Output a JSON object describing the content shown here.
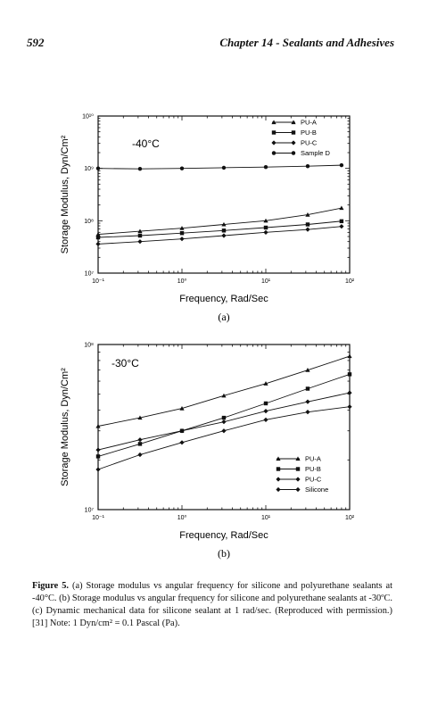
{
  "header": {
    "page_number": "592",
    "chapter_title": "Chapter 14 - Sealants and Adhesives"
  },
  "chart_data": [
    {
      "type": "line",
      "panel_label": "(a)",
      "annotation": "-40°C",
      "xlabel": "Frequency, Rad/Sec",
      "ylabel": "Storage Modulus, Dyn/Cm²",
      "x_scale": "log",
      "y_scale": "log",
      "xlim": [
        0.1,
        100
      ],
      "ylim": [
        10000000,
        10000000000
      ],
      "x_ticks": [
        {
          "value": 0.1,
          "label": "10⁻¹"
        },
        {
          "value": 1,
          "label": "10⁰"
        },
        {
          "value": 10,
          "label": "10¹"
        },
        {
          "value": 100,
          "label": "10²"
        }
      ],
      "y_ticks": [
        {
          "value": 10000000,
          "label": "10⁷"
        },
        {
          "value": 100000000,
          "label": "10⁸"
        },
        {
          "value": 1000000000,
          "label": "10⁹"
        },
        {
          "value": 10000000000,
          "label": "10¹⁰"
        }
      ],
      "legend_position": "top-right",
      "series": [
        {
          "name": "PU-A",
          "marker": "triangle",
          "x": [
            0.1,
            0.316,
            1,
            3.16,
            10,
            31.6,
            80
          ],
          "y": [
            55000000,
            63000000,
            72000000,
            85000000,
            100000000,
            130000000,
            175000000
          ]
        },
        {
          "name": "PU-B",
          "marker": "square",
          "x": [
            0.1,
            0.316,
            1,
            3.16,
            10,
            31.6,
            80
          ],
          "y": [
            48000000,
            52000000,
            58000000,
            65000000,
            74000000,
            85000000,
            98000000
          ]
        },
        {
          "name": "PU-C",
          "marker": "diamond",
          "x": [
            0.1,
            0.316,
            1,
            3.16,
            10,
            31.6,
            80
          ],
          "y": [
            36000000,
            40000000,
            45000000,
            52000000,
            60000000,
            68000000,
            78000000
          ]
        },
        {
          "name": "Sample D",
          "marker": "circle",
          "x": [
            0.1,
            0.316,
            1,
            3.16,
            10,
            31.6,
            80
          ],
          "y": [
            1000000000,
            980000000,
            1000000000,
            1030000000,
            1060000000,
            1100000000,
            1150000000
          ]
        }
      ]
    },
    {
      "type": "line",
      "panel_label": "(b)",
      "annotation": "-30°C",
      "xlabel": "Frequency, Rad/Sec",
      "ylabel": "Storage Modulus, Dyn/Cm²",
      "x_scale": "log",
      "y_scale": "log",
      "xlim": [
        0.1,
        100
      ],
      "ylim": [
        10000000,
        100000000
      ],
      "x_ticks": [
        {
          "value": 0.1,
          "label": "10⁻¹"
        },
        {
          "value": 1,
          "label": "10⁰"
        },
        {
          "value": 10,
          "label": "10¹"
        },
        {
          "value": 100,
          "label": "10²"
        }
      ],
      "y_ticks": [
        {
          "value": 10000000,
          "label": "10⁷"
        },
        {
          "value": 100000000,
          "label": "10⁸"
        }
      ],
      "legend_position": "bottom-right",
      "series": [
        {
          "name": "PU-A",
          "marker": "triangle",
          "x": [
            0.1,
            0.316,
            1,
            3.16,
            10,
            31.6,
            100
          ],
          "y": [
            32000000,
            36000000,
            41000000,
            49000000,
            58000000,
            70000000,
            85000000
          ]
        },
        {
          "name": "PU-B",
          "marker": "square",
          "x": [
            0.1,
            0.316,
            1,
            3.16,
            10,
            31.6,
            100
          ],
          "y": [
            21000000,
            25000000,
            30000000,
            36000000,
            44000000,
            54000000,
            66000000
          ]
        },
        {
          "name": "PU-C",
          "marker": "diamond",
          "x": [
            0.1,
            0.316,
            1,
            3.16,
            10,
            31.6,
            100
          ],
          "y": [
            17500000,
            21500000,
            25500000,
            30000000,
            35000000,
            39000000,
            42000000
          ]
        },
        {
          "name": "Silicone",
          "marker": "diamond",
          "x": [
            0.1,
            0.316,
            1,
            3.16,
            10,
            31.6,
            100
          ],
          "y": [
            23000000,
            26500000,
            30000000,
            34000000,
            39500000,
            45000000,
            51000000
          ]
        }
      ]
    }
  ],
  "caption": {
    "label": "Figure 5.",
    "text": "(a) Storage modulus vs angular frequency for silicone and polyurethane sealants at -40°C. (b) Storage modulus vs angular frequency for silicone and polyurethane sealants at -30ºC. (c) Dynamic mechanical data for silicone sealant at 1 rad/sec. (Reproduced with permission.)[31] Note: 1 Dyn/cm² = 0.1 Pascal (Pa)."
  }
}
